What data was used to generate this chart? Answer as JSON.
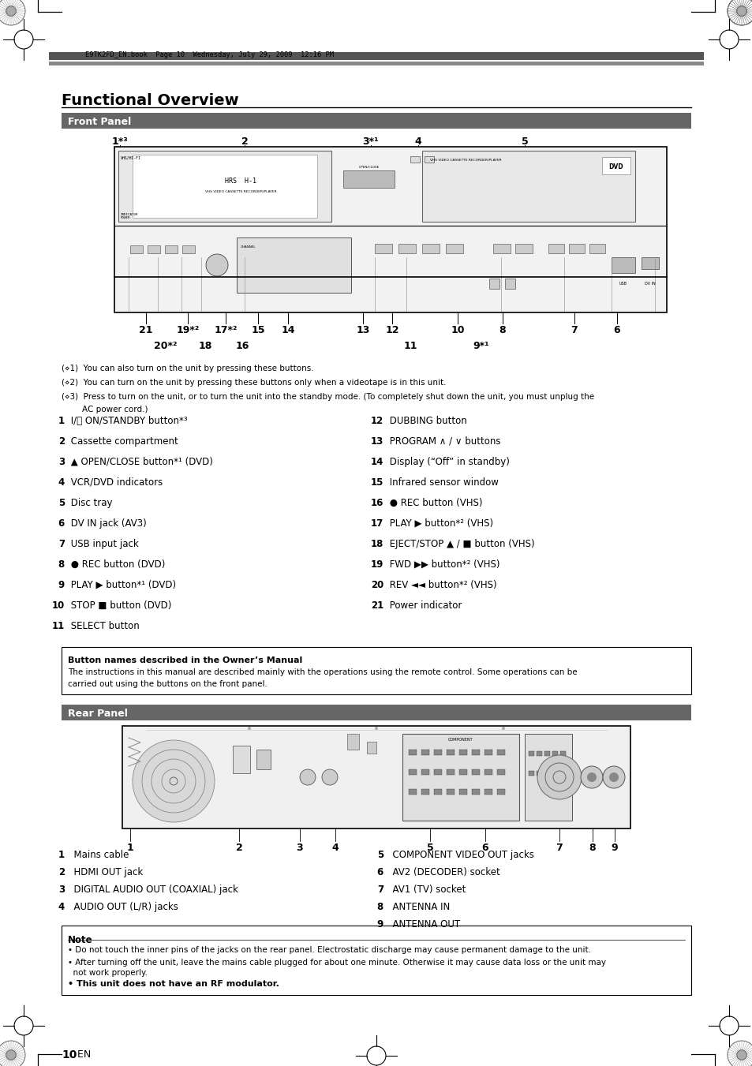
{
  "page_bg": "#ffffff",
  "header_bar_dark": "#555555",
  "header_bar_light": "#888888",
  "section_header_bg": "#666666",
  "section_header_text_color": "#ffffff",
  "main_title": "Functional Overview",
  "section1_title": "Front Panel",
  "section2_title": "Rear Panel",
  "header_meta": "E9TK2FD_EN.book  Page 10  Wednesday, July 29, 2009  12:16 PM",
  "footnote1": "(⋄1)  You can also turn on the unit by pressing these buttons.",
  "footnote2": "(⋄2)  You can turn on the unit by pressing these buttons only when a videotape is in this unit.",
  "footnote3a": "(⋄3)  Press to turn on the unit, or to turn the unit into the standby mode. (To completely shut down the unit, you must unplug the",
  "footnote3b": "        AC power cord.)",
  "front_items_left": [
    [
      "1",
      " I/⏻ ON/STANDBY button*³"
    ],
    [
      "2",
      " Cassette compartment"
    ],
    [
      "3",
      " ▲ OPEN/CLOSE button*¹ (DVD)"
    ],
    [
      "4",
      " VCR/DVD indicators"
    ],
    [
      "5",
      " Disc tray"
    ],
    [
      "6",
      " DV IN jack (AV3)"
    ],
    [
      "7",
      " USB input jack"
    ],
    [
      "8",
      " ● REC button (DVD)"
    ],
    [
      "9",
      " PLAY ▶ button*¹ (DVD)"
    ],
    [
      "10",
      " STOP ■ button (DVD)"
    ],
    [
      "11",
      " SELECT button"
    ]
  ],
  "front_items_right": [
    [
      "12",
      " DUBBING button"
    ],
    [
      "13",
      " PROGRAM ∧ / ∨ buttons"
    ],
    [
      "14",
      " Display (“Off” in standby)"
    ],
    [
      "15",
      " Infrared sensor window"
    ],
    [
      "16",
      " ● REC button (VHS)"
    ],
    [
      "17",
      " PLAY ▶ button*² (VHS)"
    ],
    [
      "18",
      " EJECT/STOP ▲ / ■ button (VHS)"
    ],
    [
      "19",
      " FWD ▶▶ button*² (VHS)"
    ],
    [
      "20",
      " REV ◄◄ button*² (VHS)"
    ],
    [
      "21",
      " Power indicator"
    ]
  ],
  "note_box_title": "Button names described in the Owner’s Manual",
  "note_box_text1": "The instructions in this manual are described mainly with the operations using the remote control. Some operations can be",
  "note_box_text2": "carried out using the buttons on the front panel.",
  "rear_items_left": [
    [
      "1",
      "  Mains cable"
    ],
    [
      "2",
      "  HDMI OUT jack"
    ],
    [
      "3",
      "  DIGITAL AUDIO OUT (COAXIAL) jack"
    ],
    [
      "4",
      "  AUDIO OUT (L/R) jacks"
    ]
  ],
  "rear_items_right": [
    [
      "5",
      "  COMPONENT VIDEO OUT jacks"
    ],
    [
      "6",
      "  AV2 (DECODER) socket"
    ],
    [
      "7",
      "  AV1 (TV) socket"
    ],
    [
      "8",
      "  ANTENNA IN"
    ],
    [
      "9",
      "  ANTENNA OUT"
    ]
  ],
  "note2_title": "Note",
  "note2_line1": "• Do not touch the inner pins of the jacks on the rear panel. Electrostatic discharge may cause permanent damage to the unit.",
  "note2_line2": "• After turning off the unit, leave the mains cable plugged for about one minute. Otherwise it may cause data loss or the unit may",
  "note2_line2b": "  not work properly.",
  "note2_line3": "• This unit does not have an RF modulator.",
  "page_number": "10",
  "page_suffix": "  EN"
}
